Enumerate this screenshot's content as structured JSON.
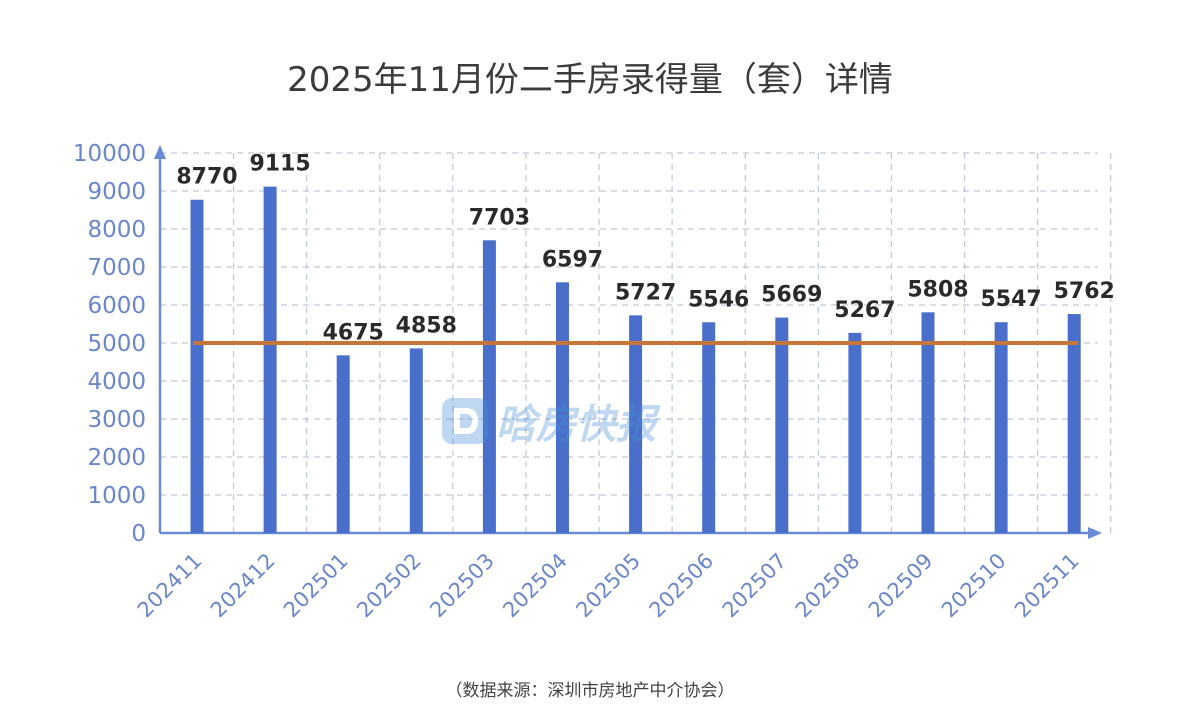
{
  "title": "2025年11月份二手房录得量（套）详情",
  "source": "（数据来源：深圳市房地产中介协会）",
  "watermark": "晗房快报",
  "colors": {
    "bar": "#4a6fcb",
    "reference_line": "#c8753a",
    "axis": "#6a8bd6",
    "grid": "#bfc8d6",
    "tick_text": "#6b87c9",
    "label_text": "#2a2a2a"
  },
  "chart_data": {
    "type": "bar",
    "categories": [
      "202411",
      "202412",
      "202501",
      "202502",
      "202503",
      "202504",
      "202505",
      "202506",
      "202507",
      "202508",
      "202509",
      "202510",
      "202511"
    ],
    "values": [
      8770,
      9115,
      4675,
      4858,
      7703,
      6597,
      5727,
      5546,
      5669,
      5267,
      5808,
      5547,
      5762
    ],
    "value_labels": [
      "8770",
      "9115",
      "4675",
      "4858",
      "7703",
      "6597",
      "5727",
      "5546",
      "5669",
      "5267",
      "5808",
      "5547",
      "5762"
    ],
    "reference_line": 5000,
    "ylim": [
      0,
      10000
    ],
    "yticks": [
      0,
      1000,
      2000,
      3000,
      4000,
      5000,
      6000,
      7000,
      8000,
      9000,
      10000
    ],
    "grid": true,
    "xlabel": "",
    "ylabel": ""
  }
}
